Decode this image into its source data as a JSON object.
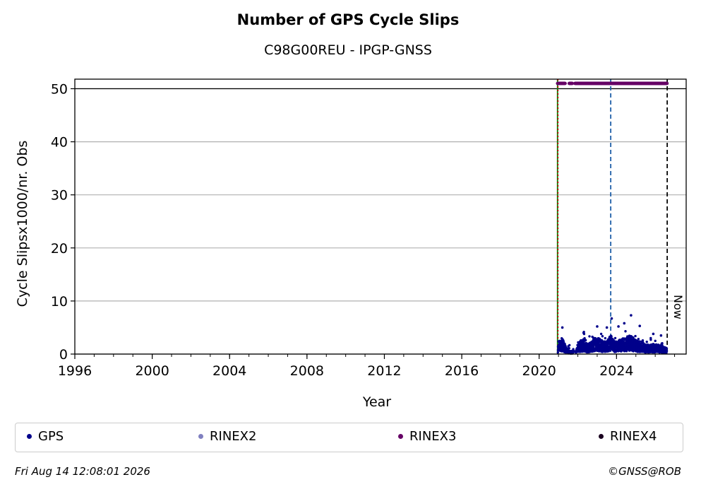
{
  "chart_data": {
    "type": "scatter",
    "title": "Number of GPS Cycle Slips",
    "subtitle": "C98G00REU - IPGP-GNSS",
    "xlabel": "Year",
    "ylabel": "Cycle Slipsx1000/nr. Obs",
    "xlim": [
      1996,
      2027.6
    ],
    "ylim": [
      0,
      51.8
    ],
    "xticks": [
      "1996",
      "2000",
      "2004",
      "2008",
      "2012",
      "2016",
      "2020",
      "2024"
    ],
    "yticks": [
      "0",
      "10",
      "20",
      "30",
      "40",
      "50"
    ],
    "grid": "horizontal",
    "legend_position": "bottom",
    "cap_line_value": 50,
    "vertical_markers": [
      {
        "x": 2020.95,
        "color": "#008000",
        "style": "solid"
      },
      {
        "x": 2020.97,
        "color": "#cc0000",
        "style": "dotted"
      },
      {
        "x": 2023.7,
        "color": "#1f5fa8",
        "style": "dashed"
      },
      {
        "x": 2026.62,
        "color": "#000000",
        "style": "dashed",
        "label": "Now"
      }
    ],
    "series": [
      {
        "name": "GPS",
        "color": "#00008b",
        "density": "daily",
        "x": [
          2021.0,
          2021.2,
          2021.4,
          2021.6,
          2021.9,
          2022.1,
          2022.3,
          2022.5,
          2022.7,
          2022.9,
          2023.1,
          2023.3,
          2023.5,
          2023.7,
          2023.9,
          2024.1,
          2024.3,
          2024.5,
          2024.7,
          2024.9,
          2025.1,
          2025.3,
          2025.5,
          2025.7,
          2025.9,
          2026.1,
          2026.3,
          2026.5
        ],
        "y": [
          1.5,
          2.5,
          1.0,
          0.5,
          0.6,
          2.0,
          2.5,
          1.5,
          2.0,
          2.5,
          2.5,
          2.0,
          2.0,
          3.0,
          2.0,
          2.0,
          2.5,
          2.5,
          3.0,
          2.5,
          2.0,
          2.0,
          1.5,
          1.5,
          1.5,
          1.5,
          1.5,
          1.0
        ],
        "peaks": [
          [
            2021.2,
            5.0
          ],
          [
            2022.3,
            4.0
          ],
          [
            2023.0,
            5.2
          ],
          [
            2023.5,
            5.0
          ],
          [
            2023.75,
            6.7
          ],
          [
            2024.1,
            5.2
          ],
          [
            2024.4,
            5.8
          ],
          [
            2024.75,
            7.3
          ],
          [
            2025.2,
            5.3
          ],
          [
            2025.9,
            3.8
          ],
          [
            2026.3,
            3.5
          ]
        ]
      },
      {
        "name": "RINEX2",
        "color": "#8080c0",
        "x": [],
        "y": []
      },
      {
        "name": "RINEX3",
        "color": "#660066",
        "y_level": 51,
        "segments": [
          [
            2020.95,
            2021.35
          ],
          [
            2021.55,
            2021.72
          ],
          [
            2021.85,
            2026.62
          ]
        ]
      },
      {
        "name": "RINEX4",
        "color": "#1a0020",
        "x": [],
        "y": []
      }
    ]
  },
  "footer": {
    "timestamp": "Fri Aug 14 12:08:01 2026",
    "copyright": "©GNSS@ROB"
  }
}
